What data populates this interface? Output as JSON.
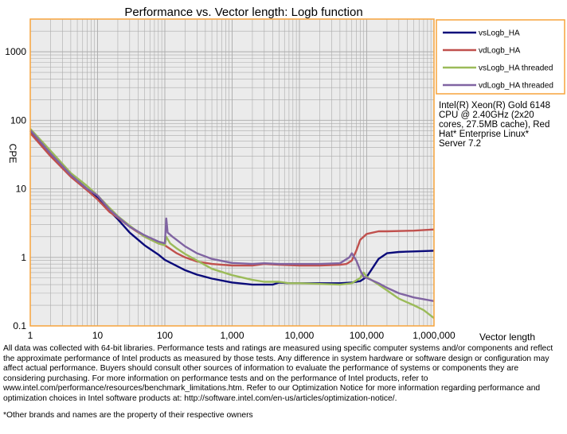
{
  "chart_data": {
    "type": "line",
    "title": "Performance vs. Vector length: Logb function",
    "xlabel": "Vector length",
    "ylabel": "CPE",
    "xscale": "log",
    "yscale": "log",
    "xlim": [
      1,
      1000000
    ],
    "ylim": [
      0.1,
      3000
    ],
    "x_ticks": [
      {
        "value": 1,
        "label": "1"
      },
      {
        "value": 10,
        "label": "10"
      },
      {
        "value": 100,
        "label": "100"
      },
      {
        "value": 1000,
        "label": "1,000"
      },
      {
        "value": 10000,
        "label": "10,000"
      },
      {
        "value": 100000,
        "label": "100,000"
      },
      {
        "value": 1000000,
        "label": "1,000,000"
      }
    ],
    "y_ticks": [
      {
        "value": 0.1,
        "label": "0.1"
      },
      {
        "value": 1,
        "label": "1"
      },
      {
        "value": 10,
        "label": "10"
      },
      {
        "value": 100,
        "label": "100"
      },
      {
        "value": 1000,
        "label": "1000"
      }
    ],
    "grid": true,
    "legend_position": "right",
    "series": [
      {
        "name": "vsLogb_HA",
        "color": "#0b0b7a",
        "x": [
          1,
          2,
          4,
          7,
          10,
          15,
          20,
          30,
          50,
          80,
          100,
          150,
          200,
          300,
          500,
          1000,
          2000,
          4000,
          5000,
          7000,
          10000,
          20000,
          40000,
          60000,
          80000,
          100000,
          120000,
          150000,
          200000,
          300000,
          500000,
          1000000
        ],
        "y": [
          70,
          32,
          16,
          10,
          7.5,
          4.8,
          3.6,
          2.3,
          1.5,
          1.1,
          0.92,
          0.75,
          0.65,
          0.56,
          0.49,
          0.43,
          0.4,
          0.4,
          0.43,
          0.42,
          0.42,
          0.42,
          0.42,
          0.43,
          0.45,
          0.52,
          0.68,
          0.95,
          1.15,
          1.2,
          1.22,
          1.25
        ]
      },
      {
        "name": "vdLogb_HA",
        "color": "#c0504d",
        "x": [
          1,
          2,
          4,
          7,
          10,
          15,
          20,
          30,
          50,
          80,
          100,
          150,
          200,
          300,
          500,
          1000,
          2000,
          3000,
          5000,
          10000,
          20000,
          40000,
          50000,
          60000,
          70000,
          80000,
          100000,
          150000,
          200000,
          500000,
          1000000
        ],
        "y": [
          65,
          30,
          15,
          9.5,
          7.0,
          4.6,
          3.8,
          2.8,
          2.0,
          1.6,
          1.5,
          1.15,
          1.0,
          0.87,
          0.8,
          0.76,
          0.76,
          0.8,
          0.78,
          0.76,
          0.76,
          0.78,
          0.8,
          0.9,
          1.25,
          1.8,
          2.2,
          2.4,
          2.4,
          2.45,
          2.55
        ]
      },
      {
        "name": "vsLogb_HA threaded",
        "color": "#9bbb59",
        "x": [
          1,
          2,
          4,
          7,
          10,
          15,
          20,
          30,
          50,
          80,
          100,
          105,
          120,
          150,
          200,
          300,
          500,
          1000,
          2000,
          3000,
          5000,
          7000,
          10000,
          20000,
          40000,
          60000,
          80000,
          90000,
          100000,
          150000,
          200000,
          300000,
          500000,
          700000,
          1000000
        ],
        "y": [
          75,
          36,
          17,
          11,
          8.0,
          5.3,
          4.0,
          2.9,
          2.0,
          1.6,
          1.5,
          2.0,
          1.6,
          1.35,
          1.12,
          0.9,
          0.68,
          0.55,
          0.47,
          0.44,
          0.44,
          0.42,
          0.42,
          0.41,
          0.4,
          0.42,
          0.5,
          0.6,
          0.52,
          0.4,
          0.33,
          0.25,
          0.2,
          0.17,
          0.13
        ]
      },
      {
        "name": "vdLogb_HA threaded",
        "color": "#8064a2",
        "x": [
          1,
          2,
          4,
          7,
          10,
          15,
          20,
          30,
          50,
          80,
          100,
          105,
          110,
          130,
          150,
          200,
          300,
          500,
          1000,
          2000,
          3000,
          5000,
          10000,
          20000,
          40000,
          55000,
          60000,
          70000,
          80000,
          90000,
          100000,
          150000,
          200000,
          300000,
          500000,
          1000000
        ],
        "y": [
          72,
          33,
          16,
          10,
          8.0,
          5.0,
          3.9,
          2.8,
          2.1,
          1.7,
          1.6,
          3.7,
          2.3,
          2.0,
          1.8,
          1.45,
          1.15,
          0.95,
          0.83,
          0.8,
          0.82,
          0.8,
          0.8,
          0.8,
          0.82,
          1.0,
          1.15,
          0.9,
          0.65,
          0.52,
          0.5,
          0.42,
          0.36,
          0.3,
          0.26,
          0.23
        ]
      }
    ]
  },
  "annotation": {
    "lines": [
      "Intel(R) Xeon(R) Gold 6148",
      "CPU @ 2.40GHz (2x20",
      "cores, 27.5MB cache), Red",
      "Hat* Enterprise Linux*",
      "Server 7.2"
    ]
  },
  "footer": {
    "disclaimer": "All data was collected with 64-bit libraries. Performance tests and ratings are measured using specific computer systems and/or components and reflect the approximate performance of Intel products as measured by those tests. Any difference in system hardware or software design or configuration may affect actual performance. Buyers should consult other sources of information to evaluate the performance of systems or components they are considering purchasing. For more information on performance tests and on the performance of Intel products, refer to www.intel.com/performance/resources/benchmark_limitations.htm. Refer to our Optimization Notice for more information regarding performance and optimization choices in Intel software products at: http://software.intel.com/en-us/articles/optimization-notice/.",
    "trademark": "*Other brands and names are the property of their respective owners"
  },
  "colors": {
    "frame": "#f7a43c",
    "plot_background": "#ebebeb",
    "grid": "#ababab"
  }
}
